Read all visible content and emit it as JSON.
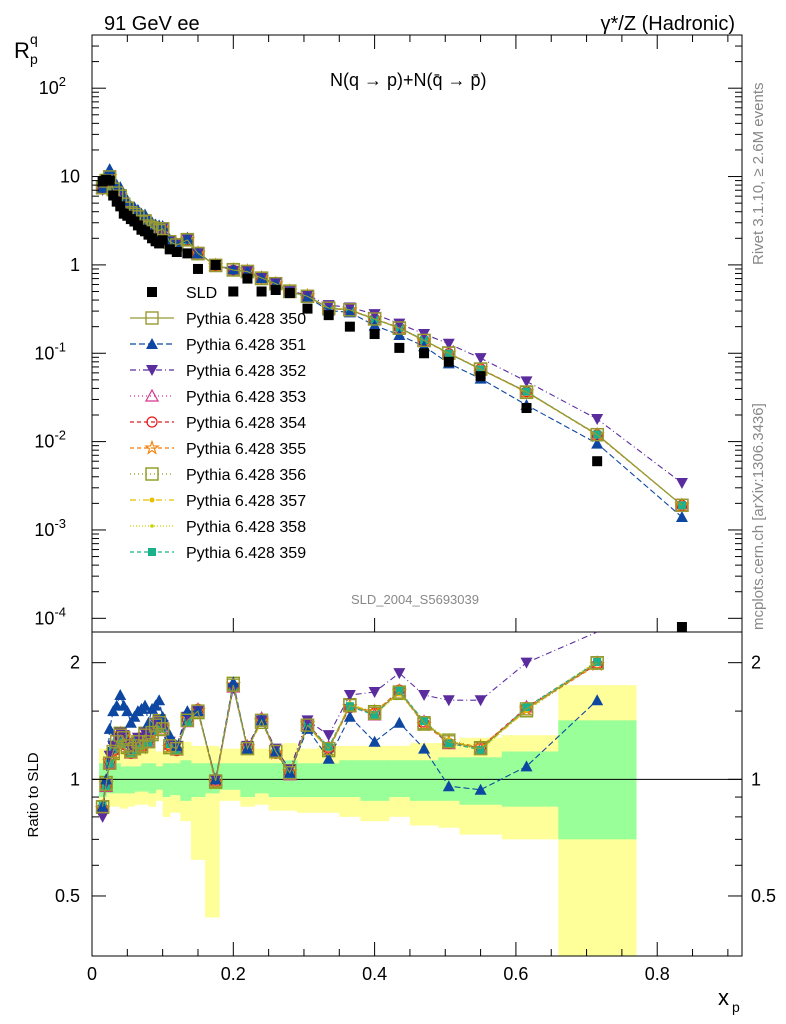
{
  "header": {
    "left": "91 GeV ee",
    "right": "γ*/Z (Hadronic)",
    "formula": "N(q → p)+N(q̄ → p̄)",
    "side_rivet": "Rivet 3.1.10, ≥ 2.6M events",
    "side_site": "mcplots.cern.ch [arXiv:1306.3436]",
    "analysis": "SLD_2004_S5693039"
  },
  "colors": {
    "data": "#000000",
    "band_outer": "#ffff99",
    "band_inner": "#99ff99"
  },
  "chart_data": [
    {
      "type": "scatter",
      "title": "",
      "xlabel": "x_p",
      "ylabel": "R^q_p",
      "yscale": "log",
      "xlim": [
        0,
        0.92
      ],
      "ylim": [
        7e-05,
        400
      ],
      "yticks": [
        {
          "v": 0.0001,
          "label": "10^-4"
        },
        {
          "v": 0.001,
          "label": "10^-3"
        },
        {
          "v": 0.01,
          "label": "10^-2"
        },
        {
          "v": 0.1,
          "label": "10^-1"
        },
        {
          "v": 1,
          "label": "1"
        },
        {
          "v": 10,
          "label": "10"
        },
        {
          "v": 100,
          "label": "10^2"
        }
      ],
      "x": [
        0.015,
        0.02,
        0.025,
        0.03,
        0.035,
        0.04,
        0.045,
        0.05,
        0.055,
        0.06,
        0.065,
        0.07,
        0.075,
        0.08,
        0.085,
        0.09,
        0.095,
        0.1,
        0.11,
        0.12,
        0.135,
        0.15,
        0.175,
        0.2,
        0.22,
        0.24,
        0.26,
        0.28,
        0.305,
        0.335,
        0.365,
        0.4,
        0.435,
        0.47,
        0.505,
        0.55,
        0.615,
        0.715,
        0.835
      ],
      "data": {
        "name": "SLD",
        "values": [
          8.8,
          9.2,
          9.0,
          6.1,
          5.2,
          4.6,
          3.8,
          3.6,
          3.3,
          3.1,
          2.8,
          2.5,
          2.4,
          2.2,
          2.0,
          1.85,
          1.75,
          1.9,
          1.5,
          1.4,
          1.35,
          0.9,
          1.0,
          0.5,
          0.7,
          0.5,
          0.52,
          0.48,
          0.32,
          0.27,
          0.2,
          0.165,
          0.115,
          0.1,
          0.08,
          0.055,
          0.024,
          0.006,
          7e-05
        ]
      },
      "series": [
        {
          "name": "Pythia 6.428 350",
          "color": "#999933",
          "marker": "open-square",
          "dash": "none",
          "ratio": [
            0.85,
            0.97,
            1.1,
            1.18,
            1.25,
            1.3,
            1.28,
            1.22,
            1.18,
            1.2,
            1.25,
            1.22,
            1.3,
            1.25,
            1.32,
            1.38,
            1.4,
            1.35,
            1.22,
            1.2,
            1.42,
            1.5,
            0.99,
            1.75,
            1.2,
            1.42,
            1.18,
            1.04,
            1.38,
            1.2,
            1.55,
            1.48,
            1.68,
            1.4,
            1.25,
            1.2,
            1.52,
            2.0,
            0
          ]
        },
        {
          "name": "Pythia 6.428 351",
          "color": "#0d47a1",
          "marker": "filled-triangle-up",
          "dash": "6,3",
          "ratio": [
            0.85,
            1.0,
            1.35,
            1.5,
            1.55,
            1.65,
            1.55,
            1.5,
            1.4,
            1.45,
            1.5,
            1.52,
            1.55,
            1.4,
            1.52,
            1.55,
            1.6,
            1.45,
            1.3,
            1.22,
            1.5,
            1.5,
            1.0,
            1.78,
            1.2,
            1.42,
            1.18,
            1.04,
            1.35,
            1.13,
            1.45,
            1.25,
            1.4,
            1.2,
            0.96,
            0.94,
            1.08,
            1.6,
            0
          ],
          "tail": [
            0.0095,
            0.0014
          ]
        },
        {
          "name": "Pythia 6.428 352",
          "color": "#5b2c9e",
          "marker": "filled-triangle-down",
          "dash": "6,3,1,3",
          "ratio": [
            0.8,
            0.98,
            1.15,
            1.22,
            1.28,
            1.32,
            1.3,
            1.24,
            1.2,
            1.22,
            1.28,
            1.25,
            1.32,
            1.28,
            1.35,
            1.4,
            1.42,
            1.38,
            1.25,
            1.22,
            1.45,
            1.5,
            1.0,
            1.72,
            1.22,
            1.42,
            1.2,
            1.06,
            1.42,
            1.3,
            1.65,
            1.68,
            1.88,
            1.65,
            1.6,
            1.6,
            2.0,
            2.6,
            0
          ],
          "tail": [
            0.018,
            0.0034
          ]
        },
        {
          "name": "Pythia 6.428 353",
          "color": "#d4368d",
          "marker": "open-triangle-up",
          "dash": "1,3"
        },
        {
          "name": "Pythia 6.428 354",
          "color": "#e31a1c",
          "marker": "open-circle",
          "dash": "4,3"
        },
        {
          "name": "Pythia 6.428 355",
          "color": "#f57c00",
          "marker": "open-star",
          "dash": "4,3"
        },
        {
          "name": "Pythia 6.428 356",
          "color": "#8a9a1b",
          "marker": "open-square",
          "dash": "1,3"
        },
        {
          "name": "Pythia 6.428 357",
          "color": "#e8c000",
          "marker": "small-star",
          "dash": "6,3,1,3"
        },
        {
          "name": "Pythia 6.428 358",
          "color": "#c8d400",
          "marker": "small-dot",
          "dash": "1,2"
        },
        {
          "name": "Pythia 6.428 359",
          "color": "#1ab28c",
          "marker": "filled-square",
          "dash": "4,3"
        }
      ],
      "legend": "left-middle"
    },
    {
      "type": "line",
      "title": "",
      "xlabel": "x_p",
      "ylabel": "Ratio to SLD",
      "yscale": "log",
      "ylim": [
        0.35,
        2.4
      ],
      "xticks": [
        0,
        0.2,
        0.4,
        0.6,
        0.8
      ],
      "xticklabels": [
        "0",
        "0.2",
        "0.4",
        "0.6",
        "0.8"
      ],
      "yticks": [
        {
          "v": 0.5,
          "label": "0.5"
        },
        {
          "v": 1,
          "label": "1"
        },
        {
          "v": 2,
          "label": "2"
        }
      ],
      "bands": {
        "edges": [
          0.01,
          0.02,
          0.03,
          0.04,
          0.05,
          0.06,
          0.07,
          0.08,
          0.09,
          0.1,
          0.11,
          0.125,
          0.14,
          0.16,
          0.18,
          0.21,
          0.23,
          0.25,
          0.27,
          0.29,
          0.32,
          0.35,
          0.38,
          0.42,
          0.45,
          0.49,
          0.52,
          0.58,
          0.66,
          0.77
        ],
        "outer": [
          [
            0.8,
            1.2
          ],
          [
            0.85,
            1.17
          ],
          [
            0.85,
            1.2
          ],
          [
            0.84,
            1.18
          ],
          [
            0.85,
            1.18
          ],
          [
            0.86,
            1.2
          ],
          [
            0.86,
            1.22
          ],
          [
            0.85,
            1.2
          ],
          [
            0.88,
            1.18
          ],
          [
            0.8,
            1.22
          ],
          [
            0.82,
            1.2
          ],
          [
            0.78,
            1.25
          ],
          [
            0.62,
            1.22
          ],
          [
            0.44,
            1.22
          ],
          [
            0.88,
            1.2
          ],
          [
            0.85,
            1.22
          ],
          [
            0.86,
            1.2
          ],
          [
            0.83,
            1.22
          ],
          [
            0.83,
            1.24
          ],
          [
            0.82,
            1.2
          ],
          [
            0.82,
            1.22
          ],
          [
            0.8,
            1.22
          ],
          [
            0.78,
            1.22
          ],
          [
            0.8,
            1.22
          ],
          [
            0.76,
            1.24
          ],
          [
            0.75,
            1.24
          ],
          [
            0.72,
            1.28
          ],
          [
            0.7,
            1.3
          ],
          [
            0.3,
            1.75
          ]
        ],
        "inner": [
          [
            0.9,
            1.1
          ],
          [
            0.92,
            1.08
          ],
          [
            0.92,
            1.1
          ],
          [
            0.92,
            1.08
          ],
          [
            0.92,
            1.08
          ],
          [
            0.93,
            1.08
          ],
          [
            0.93,
            1.1
          ],
          [
            0.92,
            1.1
          ],
          [
            0.94,
            1.08
          ],
          [
            0.9,
            1.1
          ],
          [
            0.91,
            1.1
          ],
          [
            0.88,
            1.12
          ],
          [
            0.9,
            1.1
          ],
          [
            0.92,
            1.1
          ],
          [
            0.94,
            1.1
          ],
          [
            0.9,
            1.1
          ],
          [
            0.92,
            1.1
          ],
          [
            0.9,
            1.1
          ],
          [
            0.9,
            1.12
          ],
          [
            0.9,
            1.1
          ],
          [
            0.9,
            1.1
          ],
          [
            0.9,
            1.12
          ],
          [
            0.88,
            1.12
          ],
          [
            0.9,
            1.12
          ],
          [
            0.88,
            1.12
          ],
          [
            0.88,
            1.14
          ],
          [
            0.86,
            1.14
          ],
          [
            0.85,
            1.18
          ],
          [
            0.7,
            1.42
          ]
        ]
      }
    }
  ]
}
